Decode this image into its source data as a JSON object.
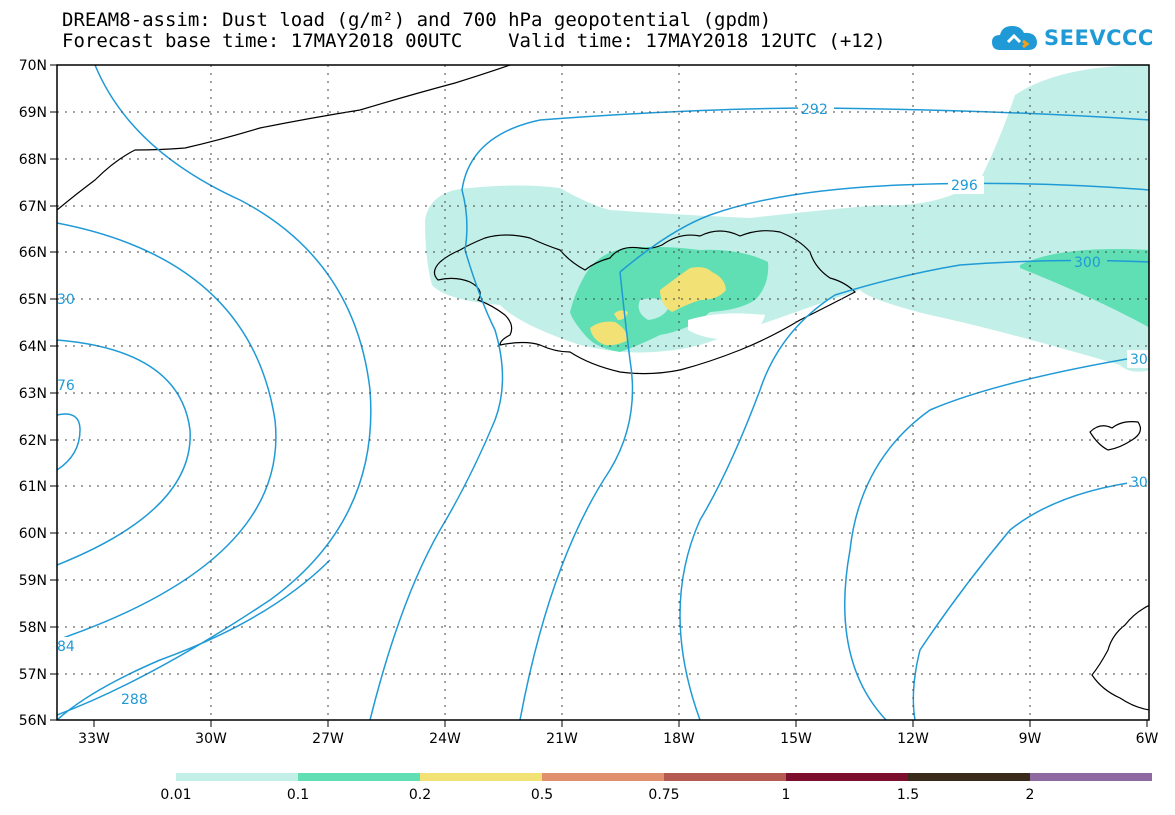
{
  "title": {
    "line1": "DREAM8-assim: Dust load (g/m²) and 700 hPa geopotential (gpdm)",
    "line2": "Forecast base time: 17MAY2018 00UTC    Valid time: 17MAY2018 12UTC (+12)"
  },
  "logo": {
    "text": "SEEVCCC",
    "icon": "cloud-icon",
    "color": "#1f9ad6"
  },
  "map": {
    "lat_labels": [
      "70N",
      "69N",
      "68N",
      "67N",
      "66N",
      "65N",
      "64N",
      "63N",
      "62N",
      "61N",
      "60N",
      "59N",
      "58N",
      "57N",
      "56N"
    ],
    "lon_labels": [
      "33W",
      "30W",
      "27W",
      "24W",
      "21W",
      "18W",
      "15W",
      "12W",
      "9W",
      "6W"
    ],
    "contour_labels": [
      "292",
      "296",
      "300",
      "30",
      "76",
      "84",
      "288",
      "30",
      "30"
    ]
  },
  "colorbar": {
    "colors": [
      "#c2f0e8",
      "#5fdfb3",
      "#f2e276",
      "#e0906d",
      "#b55a50",
      "#7c0f2d",
      "#3a2a1b",
      "#8f6aa0"
    ],
    "labels": [
      "0.01",
      "0.1",
      "0.2",
      "0.5",
      "0.75",
      "1",
      "1.5",
      "2"
    ]
  }
}
